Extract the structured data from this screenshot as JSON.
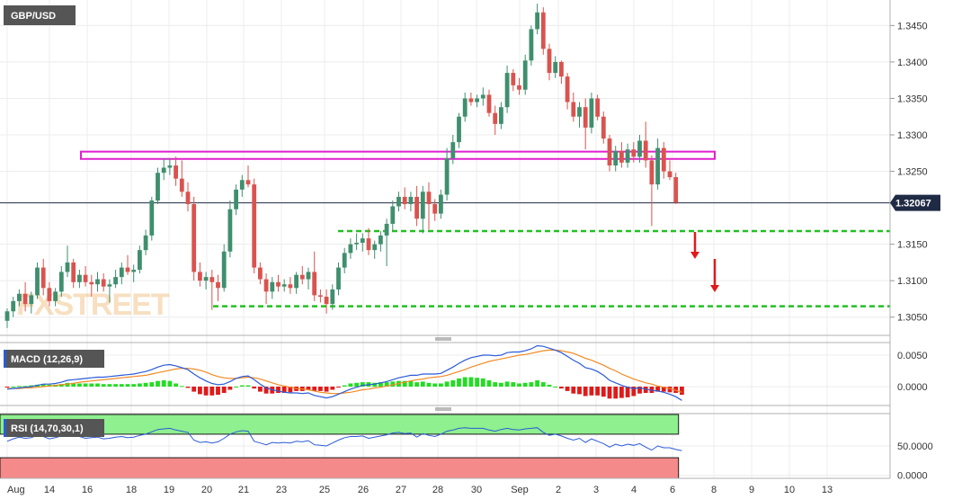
{
  "chart_data": {
    "type": "candlestick",
    "symbol": "GBP/USD",
    "current_price_label": "1.32067",
    "current_price": 1.32067,
    "price_ylim": [
      1.3025,
      1.3485
    ],
    "price_ticks": [
      "1.3450",
      "1.3400",
      "1.3350",
      "1.3300",
      "1.3250",
      "1.3150",
      "1.3100",
      "1.3050"
    ],
    "x_tick_labels": [
      "Aug",
      "14",
      "16",
      "18",
      "19",
      "20",
      "21",
      "23",
      "25",
      "26",
      "27",
      "28",
      "30",
      "Sep",
      "2",
      "3",
      "4",
      "6",
      "8",
      "9",
      "10",
      "13"
    ],
    "watermark": "FXSTREET",
    "candles": [
      [
        1.3045,
        1.3062,
        1.3035,
        1.3058
      ],
      [
        1.3058,
        1.3078,
        1.305,
        1.3072
      ],
      [
        1.3072,
        1.3088,
        1.3065,
        1.3082
      ],
      [
        1.3082,
        1.3098,
        1.3058,
        1.3068
      ],
      [
        1.3068,
        1.3085,
        1.3055,
        1.308
      ],
      [
        1.308,
        1.3125,
        1.3075,
        1.3118
      ],
      [
        1.3118,
        1.313,
        1.308,
        1.309
      ],
      [
        1.309,
        1.3098,
        1.3065,
        1.3072
      ],
      [
        1.3072,
        1.309,
        1.3065,
        1.3085
      ],
      [
        1.3085,
        1.312,
        1.3078,
        1.3112
      ],
      [
        1.3112,
        1.3148,
        1.3105,
        1.3125
      ],
      [
        1.3125,
        1.313,
        1.309,
        1.3098
      ],
      [
        1.3098,
        1.3115,
        1.309,
        1.3108
      ],
      [
        1.3108,
        1.312,
        1.3092,
        1.3098
      ],
      [
        1.3098,
        1.3108,
        1.3078,
        1.3095
      ],
      [
        1.3095,
        1.3112,
        1.3085,
        1.3102
      ],
      [
        1.3102,
        1.311,
        1.3085,
        1.3092
      ],
      [
        1.3092,
        1.3102,
        1.307,
        1.3095
      ],
      [
        1.3095,
        1.3115,
        1.309,
        1.3105
      ],
      [
        1.3105,
        1.3125,
        1.3095,
        1.3118
      ],
      [
        1.3118,
        1.3135,
        1.3108,
        1.3112
      ],
      [
        1.3112,
        1.3122,
        1.3098,
        1.3115
      ],
      [
        1.3115,
        1.3148,
        1.311,
        1.3142
      ],
      [
        1.3142,
        1.317,
        1.3135,
        1.3162
      ],
      [
        1.3162,
        1.3215,
        1.3155,
        1.321
      ],
      [
        1.321,
        1.3255,
        1.3205,
        1.3248
      ],
      [
        1.3248,
        1.3268,
        1.3238,
        1.3255
      ],
      [
        1.3255,
        1.3268,
        1.3245,
        1.3258
      ],
      [
        1.3258,
        1.327,
        1.323,
        1.324
      ],
      [
        1.324,
        1.3265,
        1.3215,
        1.3222
      ],
      [
        1.3222,
        1.3235,
        1.3195,
        1.3205
      ],
      [
        1.3205,
        1.3215,
        1.31,
        1.3112
      ],
      [
        1.3112,
        1.3125,
        1.3092,
        1.31
      ],
      [
        1.31,
        1.3112,
        1.3088,
        1.3105
      ],
      [
        1.3105,
        1.3115,
        1.306,
        1.3098
      ],
      [
        1.3098,
        1.3108,
        1.3072,
        1.309
      ],
      [
        1.309,
        1.315,
        1.3085,
        1.314
      ],
      [
        1.314,
        1.321,
        1.3132,
        1.3198
      ],
      [
        1.3198,
        1.3232,
        1.319,
        1.3225
      ],
      [
        1.3225,
        1.3245,
        1.3215,
        1.3238
      ],
      [
        1.3238,
        1.3258,
        1.3228,
        1.3232
      ],
      [
        1.3232,
        1.324,
        1.311,
        1.3118
      ],
      [
        1.3118,
        1.3125,
        1.3095,
        1.3102
      ],
      [
        1.3102,
        1.311,
        1.3068,
        1.3085
      ],
      [
        1.3085,
        1.3105,
        1.3075,
        1.3098
      ],
      [
        1.3098,
        1.3108,
        1.3085,
        1.3092
      ],
      [
        1.3092,
        1.3102,
        1.3085,
        1.3095
      ],
      [
        1.3095,
        1.3105,
        1.3082,
        1.309
      ],
      [
        1.309,
        1.3112,
        1.3082,
        1.3108
      ],
      [
        1.3108,
        1.312,
        1.3095,
        1.3102
      ],
      [
        1.3102,
        1.3118,
        1.3088,
        1.3112
      ],
      [
        1.3112,
        1.314,
        1.3072,
        1.308
      ],
      [
        1.308,
        1.3088,
        1.307,
        1.3078
      ],
      [
        1.3078,
        1.3088,
        1.3055,
        1.3068
      ],
      [
        1.3068,
        1.3095,
        1.306,
        1.3088
      ],
      [
        1.3088,
        1.3125,
        1.308,
        1.3118
      ],
      [
        1.3118,
        1.3145,
        1.311,
        1.3138
      ],
      [
        1.3138,
        1.3158,
        1.313,
        1.315
      ],
      [
        1.315,
        1.3165,
        1.3142,
        1.3152
      ],
      [
        1.3152,
        1.3165,
        1.314,
        1.3158
      ],
      [
        1.3158,
        1.3172,
        1.3135,
        1.3142
      ],
      [
        1.3142,
        1.3155,
        1.313,
        1.315
      ],
      [
        1.315,
        1.3168,
        1.314,
        1.3162
      ],
      [
        1.3162,
        1.3185,
        1.312,
        1.3178
      ],
      [
        1.3178,
        1.321,
        1.3168,
        1.3202
      ],
      [
        1.3202,
        1.3222,
        1.3195,
        1.3215
      ],
      [
        1.3215,
        1.3228,
        1.3198,
        1.3205
      ],
      [
        1.3205,
        1.3222,
        1.3195,
        1.3215
      ],
      [
        1.3215,
        1.323,
        1.3175,
        1.3185
      ],
      [
        1.3185,
        1.323,
        1.3165,
        1.3222
      ],
      [
        1.3222,
        1.3235,
        1.317,
        1.3205
      ],
      [
        1.3205,
        1.3212,
        1.3182,
        1.3192
      ],
      [
        1.3192,
        1.3225,
        1.3185,
        1.3218
      ],
      [
        1.3218,
        1.3282,
        1.321,
        1.3268
      ],
      [
        1.3268,
        1.33,
        1.326,
        1.329
      ],
      [
        1.329,
        1.333,
        1.3282,
        1.3325
      ],
      [
        1.3325,
        1.3358,
        1.3318,
        1.335
      ],
      [
        1.335,
        1.3358,
        1.334,
        1.3345
      ],
      [
        1.3345,
        1.3355,
        1.3338,
        1.335
      ],
      [
        1.335,
        1.3365,
        1.334,
        1.3355
      ],
      [
        1.3355,
        1.3362,
        1.3325,
        1.333
      ],
      [
        1.333,
        1.334,
        1.33,
        1.3315
      ],
      [
        1.3315,
        1.3345,
        1.3308,
        1.3338
      ],
      [
        1.3338,
        1.3395,
        1.333,
        1.3385
      ],
      [
        1.3385,
        1.339,
        1.336,
        1.3368
      ],
      [
        1.3368,
        1.3378,
        1.3355,
        1.3362
      ],
      [
        1.3362,
        1.341,
        1.3355,
        1.3402
      ],
      [
        1.3402,
        1.345,
        1.3395,
        1.3445
      ],
      [
        1.3445,
        1.348,
        1.3438,
        1.3468
      ],
      [
        1.3468,
        1.3475,
        1.341,
        1.3418
      ],
      [
        1.3418,
        1.3425,
        1.3375,
        1.3385
      ],
      [
        1.3385,
        1.3408,
        1.3378,
        1.34
      ],
      [
        1.34,
        1.3402,
        1.337,
        1.338
      ],
      [
        1.338,
        1.3385,
        1.3335,
        1.3345
      ],
      [
        1.3345,
        1.3358,
        1.3318,
        1.3325
      ],
      [
        1.3325,
        1.3345,
        1.331,
        1.3338
      ],
      [
        1.3338,
        1.335,
        1.328,
        1.331
      ],
      [
        1.331,
        1.3358,
        1.3302,
        1.335
      ],
      [
        1.335,
        1.3355,
        1.332,
        1.3325
      ],
      [
        1.3325,
        1.3332,
        1.3288,
        1.3295
      ],
      [
        1.3295,
        1.33,
        1.325,
        1.3258
      ],
      [
        1.3258,
        1.3285,
        1.325,
        1.3278
      ],
      [
        1.3278,
        1.329,
        1.3255,
        1.3262
      ],
      [
        1.3262,
        1.3288,
        1.3255,
        1.328
      ],
      [
        1.328,
        1.329,
        1.3262,
        1.327
      ],
      [
        1.327,
        1.33,
        1.3262,
        1.3292
      ],
      [
        1.3292,
        1.3318,
        1.3255,
        1.3265
      ],
      [
        1.3265,
        1.3272,
        1.3175,
        1.3232
      ],
      [
        1.3232,
        1.3295,
        1.3225,
        1.3282
      ],
      [
        1.3282,
        1.329,
        1.324,
        1.325
      ],
      [
        1.325,
        1.3265,
        1.3238,
        1.3242
      ],
      [
        1.3242,
        1.3248,
        1.3205,
        1.3207
      ]
    ],
    "resistance_zone": {
      "top": 1.3277,
      "bottom": 1.3267
    },
    "support_levels": [
      1.3168,
      1.3065
    ],
    "macd": {
      "label": "MACD (12,26,9)",
      "ylim": [
        -0.003,
        0.007
      ],
      "ticks": [
        "0.0050",
        "0.0000"
      ],
      "macd_line": [
        -0.0004,
        -0.0003,
        -0.0002,
        -0.0001,
        0.0,
        0.0002,
        0.0004,
        0.0004,
        0.0005,
        0.0007,
        0.001,
        0.0011,
        0.0012,
        0.0013,
        0.0014,
        0.0015,
        0.0015,
        0.0016,
        0.0017,
        0.0018,
        0.0019,
        0.002,
        0.0022,
        0.0024,
        0.0027,
        0.0031,
        0.0034,
        0.0035,
        0.0033,
        0.003,
        0.0027,
        0.002,
        0.0014,
        0.0009,
        0.0005,
        0.0003,
        0.0004,
        0.0008,
        0.0013,
        0.0016,
        0.0017,
        0.0011,
        0.0004,
        -0.0002,
        -0.0005,
        -0.0007,
        -0.0009,
        -0.001,
        -0.001,
        -0.0011,
        -0.001,
        -0.0014,
        -0.0016,
        -0.0018,
        -0.0016,
        -0.0012,
        -0.0008,
        -0.0004,
        -0.0001,
        0.0002,
        0.0003,
        0.0004,
        0.0006,
        0.0008,
        0.0011,
        0.0014,
        0.0016,
        0.0018,
        0.0018,
        0.002,
        0.002,
        0.002,
        0.0021,
        0.0026,
        0.0031,
        0.0037,
        0.0042,
        0.0046,
        0.0048,
        0.005,
        0.005,
        0.0049,
        0.005,
        0.0054,
        0.0055,
        0.0055,
        0.0057,
        0.006,
        0.0065,
        0.0064,
        0.0061,
        0.0058,
        0.0054,
        0.0048,
        0.0042,
        0.0037,
        0.003,
        0.0028,
        0.0024,
        0.0018,
        0.001,
        0.0006,
        0.0002,
        -0.0001,
        -0.0003,
        -0.0002,
        -0.0004,
        -0.0006,
        -0.0007,
        -0.0009,
        -0.0012,
        -0.0016,
        -0.0022
      ],
      "signal_line": [
        -0.0003,
        -0.0003,
        -0.0003,
        -0.0002,
        -0.0002,
        -0.0001,
        0.0,
        0.0001,
        0.0002,
        0.0003,
        0.0004,
        0.0005,
        0.0007,
        0.0008,
        0.0009,
        0.001,
        0.0011,
        0.0012,
        0.0013,
        0.0014,
        0.0015,
        0.0016,
        0.0017,
        0.0018,
        0.002,
        0.0022,
        0.0024,
        0.0026,
        0.0028,
        0.0029,
        0.0029,
        0.0028,
        0.0026,
        0.0023,
        0.0019,
        0.0016,
        0.0014,
        0.0013,
        0.0013,
        0.0014,
        0.0015,
        0.0014,
        0.0012,
        0.0009,
        0.0006,
        0.0003,
        0.0001,
        -0.0001,
        -0.0003,
        -0.0004,
        -0.0005,
        -0.0007,
        -0.0009,
        -0.001,
        -0.0011,
        -0.0011,
        -0.001,
        -0.0009,
        -0.0007,
        -0.0005,
        -0.0004,
        -0.0002,
        -0.0001,
        0.0001,
        0.0003,
        0.0005,
        0.0007,
        0.0009,
        0.0011,
        0.0012,
        0.0014,
        0.0015,
        0.0016,
        0.0018,
        0.0021,
        0.0024,
        0.0027,
        0.0031,
        0.0034,
        0.0037,
        0.004,
        0.0042,
        0.0044,
        0.0046,
        0.0048,
        0.005,
        0.0051,
        0.0053,
        0.0055,
        0.0057,
        0.0058,
        0.0058,
        0.0057,
        0.0055,
        0.0053,
        0.0049,
        0.0045,
        0.0042,
        0.0038,
        0.0034,
        0.0029,
        0.0025,
        0.002,
        0.0016,
        0.0012,
        0.0009,
        0.0006,
        0.0004,
        0.0001,
        -0.0001,
        -0.0003,
        -0.0006,
        -0.0009
      ]
    },
    "rsi": {
      "label": "RSI (14,70,30,1)",
      "ylim": [
        -5,
        105
      ],
      "ticks": [
        "50.0000",
        "0.0000"
      ],
      "overbought": 70,
      "oversold": 30,
      "values": [
        58,
        62,
        65,
        63,
        64,
        68,
        66,
        62,
        64,
        67,
        69,
        66,
        66,
        63,
        64,
        65,
        62,
        63,
        65,
        66,
        64,
        65,
        68,
        70,
        74,
        78,
        79,
        80,
        77,
        75,
        73,
        60,
        56,
        57,
        55,
        57,
        63,
        70,
        74,
        76,
        75,
        58,
        55,
        52,
        56,
        55,
        56,
        55,
        58,
        57,
        59,
        52,
        51,
        50,
        55,
        60,
        64,
        66,
        66,
        67,
        63,
        65,
        67,
        69,
        72,
        73,
        71,
        72,
        65,
        71,
        68,
        66,
        70,
        75,
        77,
        80,
        81,
        80,
        80,
        80,
        77,
        75,
        78,
        80,
        78,
        77,
        79,
        80,
        81,
        73,
        68,
        70,
        67,
        63,
        60,
        63,
        56,
        62,
        58,
        54,
        48,
        53,
        50,
        53,
        51,
        54,
        48,
        43,
        50,
        47,
        47,
        44,
        42
      ]
    }
  }
}
